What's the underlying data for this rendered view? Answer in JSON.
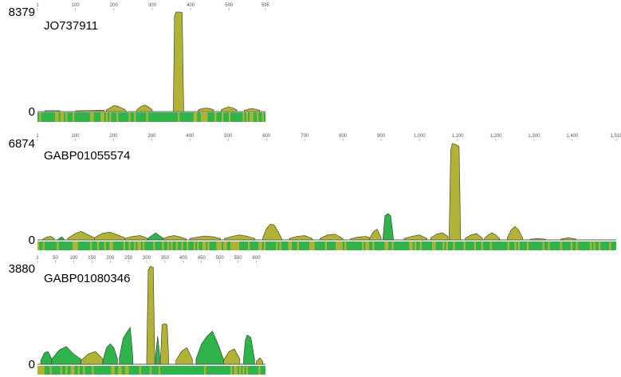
{
  "colors": {
    "olive": "#b0b336",
    "green": "#2fb34a",
    "dark_green": "#1e9b3c",
    "baseline": "#222222",
    "tick": "#888888"
  },
  "chart_data": [
    {
      "type": "area",
      "title": "JO737911",
      "ymax_label": "8379",
      "zero_label": "0",
      "ylim": [
        0,
        8379
      ],
      "xlim": [
        1,
        595
      ],
      "x_ticks": [
        1,
        100,
        200,
        300,
        400,
        500,
        595
      ],
      "x_tick_labels": [
        "1",
        "100",
        "200",
        "300",
        "400",
        "500",
        "595"
      ],
      "grid": false,
      "segments": [
        {
          "color": "olive",
          "x": [
            20,
            40,
            60
          ],
          "y": [
            70,
            80,
            70
          ]
        },
        {
          "color": "olive",
          "x": [
            100,
            120,
            140,
            160,
            175
          ],
          "y": [
            60,
            80,
            100,
            110,
            90
          ]
        },
        {
          "color": "olive",
          "x": [
            180,
            190,
            200,
            210,
            220,
            230
          ],
          "y": [
            150,
            300,
            500,
            450,
            300,
            150
          ]
        },
        {
          "color": "olive",
          "x": [
            260,
            270,
            280,
            290,
            300
          ],
          "y": [
            150,
            400,
            550,
            400,
            150
          ]
        },
        {
          "color": "olive",
          "x": [
            355,
            358,
            362,
            370,
            378,
            382
          ],
          "y": [
            250,
            7900,
            8250,
            8250,
            8200,
            300
          ]
        },
        {
          "color": "olive",
          "x": [
            420,
            430,
            440,
            450,
            460
          ],
          "y": [
            150,
            250,
            300,
            250,
            150
          ]
        },
        {
          "color": "olive",
          "x": [
            480,
            490,
            500,
            510,
            520
          ],
          "y": [
            150,
            300,
            400,
            300,
            150
          ]
        },
        {
          "color": "olive",
          "x": [
            540,
            550,
            560,
            570,
            580
          ],
          "y": [
            100,
            200,
            250,
            200,
            100
          ]
        }
      ]
    },
    {
      "type": "area",
      "title": "GABP01055574",
      "ymax_label": "6874",
      "zero_label": "0",
      "ylim": [
        0,
        6874
      ],
      "xlim": [
        1,
        1515
      ],
      "x_ticks": [
        1,
        100,
        200,
        300,
        400,
        500,
        600,
        700,
        800,
        900,
        1000,
        1100,
        1200,
        1300,
        1400,
        1515
      ],
      "x_tick_labels": [
        "1",
        "100",
        "200",
        "300",
        "400",
        "500",
        "600",
        "700",
        "800",
        "900",
        "1,000",
        "1,100",
        "1,200",
        "1,300",
        "1,400",
        "1,515"
      ],
      "grid": false,
      "segments": [
        {
          "color": "olive",
          "x": [
            15,
            25,
            35,
            45
          ],
          "y": [
            50,
            200,
            250,
            100
          ]
        },
        {
          "color": "green",
          "x": [
            55,
            60,
            65,
            70
          ],
          "y": [
            50,
            150,
            200,
            80
          ]
        },
        {
          "color": "olive",
          "x": [
            80,
            100,
            115,
            130,
            150
          ],
          "y": [
            100,
            450,
            600,
            400,
            150
          ]
        },
        {
          "color": "olive",
          "x": [
            150,
            170,
            190,
            210,
            230
          ],
          "y": [
            150,
            450,
            550,
            350,
            150
          ]
        },
        {
          "color": "olive",
          "x": [
            230,
            250,
            270,
            290
          ],
          "y": [
            100,
            250,
            300,
            100
          ]
        },
        {
          "color": "green",
          "x": [
            290,
            300,
            310,
            320,
            330
          ],
          "y": [
            100,
            300,
            500,
            300,
            100
          ]
        },
        {
          "color": "olive",
          "x": [
            330,
            345,
            360,
            375,
            390
          ],
          "y": [
            100,
            250,
            300,
            200,
            80
          ]
        },
        {
          "color": "olive",
          "x": [
            400,
            420,
            440,
            460,
            480
          ],
          "y": [
            100,
            200,
            280,
            220,
            100
          ]
        },
        {
          "color": "olive",
          "x": [
            490,
            510,
            530,
            550,
            570
          ],
          "y": [
            100,
            250,
            350,
            250,
            100
          ]
        },
        {
          "color": "olive",
          "x": [
            590,
            600,
            610,
            620,
            630,
            640
          ],
          "y": [
            100,
            800,
            1100,
            1050,
            600,
            100
          ]
        },
        {
          "color": "olive",
          "x": [
            660,
            680,
            700,
            720
          ],
          "y": [
            100,
            250,
            300,
            100
          ]
        },
        {
          "color": "olive",
          "x": [
            740,
            760,
            780,
            800
          ],
          "y": [
            100,
            350,
            400,
            100
          ]
        },
        {
          "color": "olive",
          "x": [
            820,
            840,
            860,
            880
          ],
          "y": [
            80,
            200,
            250,
            80
          ]
        },
        {
          "color": "olive",
          "x": [
            870,
            880,
            890,
            900
          ],
          "y": [
            100,
            600,
            750,
            150
          ]
        },
        {
          "color": "green",
          "x": [
            905,
            910,
            918,
            925,
            932
          ],
          "y": [
            200,
            1700,
            1850,
            1700,
            150
          ]
        },
        {
          "color": "olive",
          "x": [
            960,
            980,
            1000,
            1020
          ],
          "y": [
            100,
            250,
            350,
            100
          ]
        },
        {
          "color": "olive",
          "x": [
            1030,
            1045,
            1060,
            1075
          ],
          "y": [
            150,
            400,
            500,
            250
          ]
        },
        {
          "color": "olive",
          "x": [
            1078,
            1082,
            1086,
            1095,
            1104,
            1108
          ],
          "y": [
            250,
            6300,
            6750,
            6700,
            6550,
            250
          ]
        },
        {
          "color": "olive",
          "x": [
            1120,
            1135,
            1150,
            1165
          ],
          "y": [
            100,
            350,
            450,
            120
          ]
        },
        {
          "color": "olive",
          "x": [
            1170,
            1180,
            1190,
            1200,
            1210
          ],
          "y": [
            100,
            350,
            500,
            350,
            100
          ]
        },
        {
          "color": "olive",
          "x": [
            1230,
            1240,
            1250,
            1260,
            1270
          ],
          "y": [
            150,
            700,
            950,
            700,
            150
          ]
        },
        {
          "color": "olive",
          "x": [
            1290,
            1310,
            1330
          ],
          "y": [
            50,
            100,
            50
          ]
        },
        {
          "color": "olive",
          "x": [
            1370,
            1390,
            1410
          ],
          "y": [
            60,
            150,
            60
          ]
        }
      ]
    },
    {
      "type": "area",
      "title": "GABP01080346",
      "ymax_label": "3880",
      "zero_label": "0",
      "ylim": [
        0,
        3880
      ],
      "xlim": [
        1,
        625
      ],
      "x_ticks": [
        1,
        50,
        100,
        150,
        200,
        250,
        300,
        350,
        400,
        450,
        500,
        550,
        600
      ],
      "x_tick_labels": [
        "1",
        "50",
        "100",
        "150",
        "200",
        "250",
        "300",
        "350",
        "400",
        "450",
        "500",
        "550",
        "600"
      ],
      "grid": false,
      "segments": [
        {
          "color": "green",
          "x": [
            10,
            20,
            30,
            40
          ],
          "y": [
            150,
            450,
            500,
            200
          ]
        },
        {
          "color": "green",
          "x": [
            40,
            60,
            80,
            100,
            120
          ],
          "y": [
            200,
            550,
            700,
            400,
            200
          ]
        },
        {
          "color": "olive",
          "x": [
            120,
            140,
            160,
            180
          ],
          "y": [
            150,
            400,
            500,
            200
          ]
        },
        {
          "color": "green",
          "x": [
            180,
            190,
            200,
            210,
            220
          ],
          "y": [
            150,
            650,
            800,
            650,
            200
          ]
        },
        {
          "color": "green",
          "x": [
            225,
            235,
            245,
            255,
            262
          ],
          "y": [
            250,
            1000,
            1250,
            1450,
            300
          ]
        },
        {
          "color": "olive",
          "x": [
            300,
            304,
            310,
            318,
            322
          ],
          "y": [
            200,
            3700,
            3850,
            3800,
            200
          ]
        },
        {
          "color": "green",
          "x": [
            324,
            330,
            336
          ],
          "y": [
            300,
            1100,
            300
          ]
        },
        {
          "color": "olive",
          "x": [
            338,
            342,
            350,
            356,
            360
          ],
          "y": [
            300,
            1550,
            1600,
            1550,
            300
          ]
        },
        {
          "color": "olive",
          "x": [
            380,
            395,
            410,
            425
          ],
          "y": [
            150,
            500,
            650,
            200
          ]
        },
        {
          "color": "green",
          "x": [
            435,
            450,
            465,
            480,
            495,
            510
          ],
          "y": [
            200,
            800,
            1100,
            1300,
            800,
            200
          ]
        },
        {
          "color": "olive",
          "x": [
            510,
            525,
            540,
            555
          ],
          "y": [
            150,
            500,
            600,
            200
          ]
        },
        {
          "color": "green",
          "x": [
            565,
            570,
            575,
            585,
            595
          ],
          "y": [
            200,
            950,
            1150,
            1050,
            200
          ]
        },
        {
          "color": "olive",
          "x": [
            600,
            610,
            618
          ],
          "y": [
            100,
            250,
            100
          ]
        }
      ]
    }
  ]
}
